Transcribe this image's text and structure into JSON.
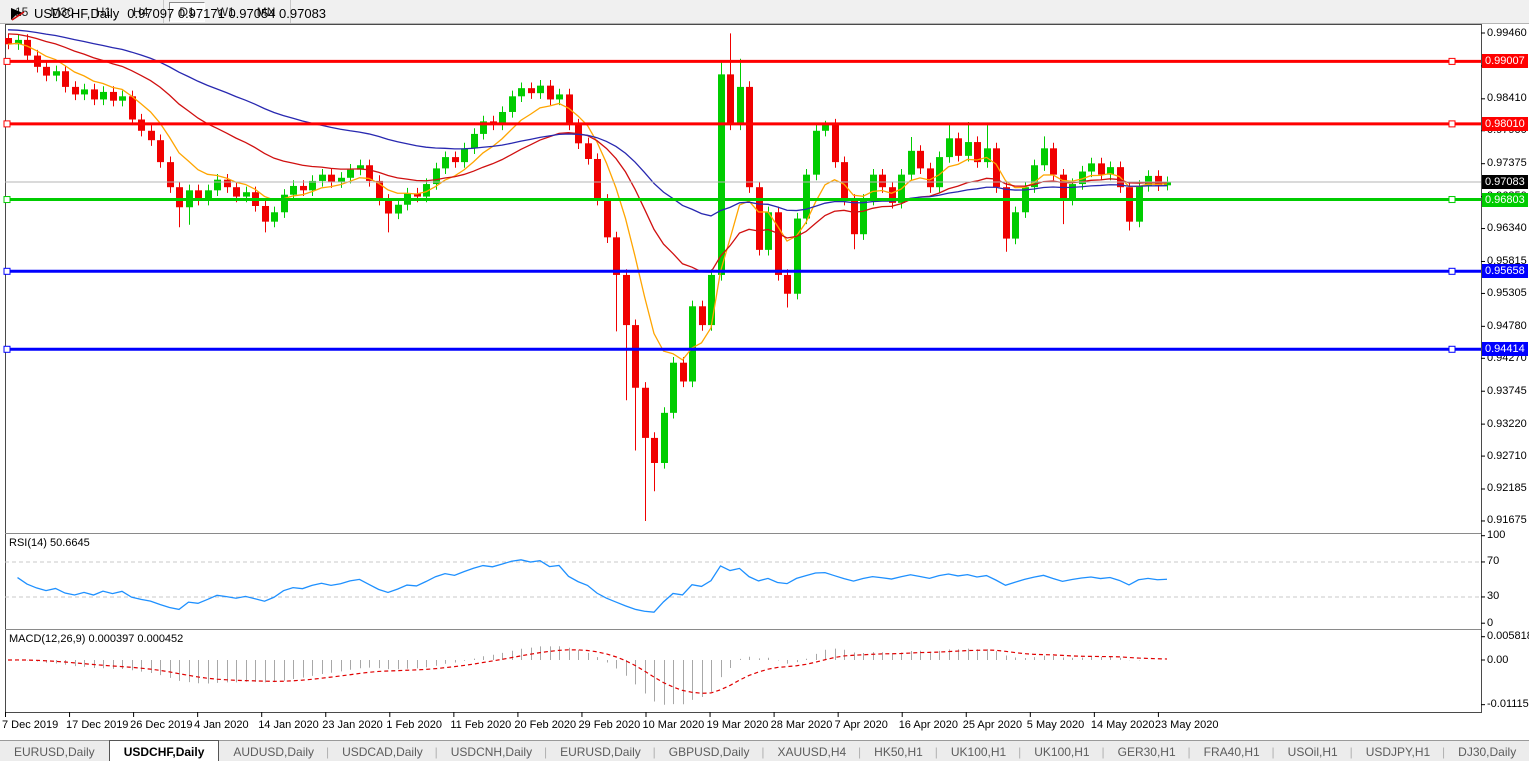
{
  "toolbar": {
    "groups": [
      [
        "15",
        "M30",
        "H1",
        "H4"
      ],
      [
        "D1",
        "W1",
        "MN"
      ]
    ],
    "active": "D1"
  },
  "chart": {
    "symbol": "USDCHF,Daily",
    "ohlc": "0.97097 0.97171 0.97054 0.97083",
    "colors": {
      "bull": "#00CC00",
      "bear": "#F00000",
      "ma_fast": "#FFA500",
      "ma_mid": "#D01010",
      "ma_slow": "#2828B0",
      "rsi": "#1E90FF",
      "macd_bar": "#A8A8A8",
      "macd_signal": "#E00000",
      "price_line": "#B4B4B4",
      "level_dash": "#C8C8C8",
      "current_box": "#000000"
    },
    "axis_ticks": [
      {
        "label": "0.99460",
        "price": 0.9946
      },
      {
        "label": "0.98935",
        "price": 0.98935
      },
      {
        "label": "0.98410",
        "price": 0.9841
      },
      {
        "label": "0.97900",
        "price": 0.979
      },
      {
        "label": "0.97375",
        "price": 0.97375
      },
      {
        "label": "0.96850",
        "price": 0.9685
      },
      {
        "label": "0.96340",
        "price": 0.9634
      },
      {
        "label": "0.95815",
        "price": 0.95815
      },
      {
        "label": "0.95305",
        "price": 0.95305
      },
      {
        "label": "0.94780",
        "price": 0.9478
      },
      {
        "label": "0.94270",
        "price": 0.9427
      },
      {
        "label": "0.93745",
        "price": 0.93745
      },
      {
        "label": "0.93220",
        "price": 0.9322
      },
      {
        "label": "0.92710",
        "price": 0.9271
      },
      {
        "label": "0.92185",
        "price": 0.92185
      },
      {
        "label": "0.91675",
        "price": 0.91675
      }
    ],
    "hlines": [
      {
        "label": "0.99007",
        "price": 0.99007,
        "color": "#FF0000"
      },
      {
        "label": "0.98010",
        "price": 0.9801,
        "color": "#FF0000"
      },
      {
        "label": "0.96803",
        "price": 0.96803,
        "color": "#00CC00"
      },
      {
        "label": "0.95658",
        "price": 0.95658,
        "color": "#0000FF"
      },
      {
        "label": "0.94414",
        "price": 0.94414,
        "color": "#0000FF"
      }
    ],
    "current_price": {
      "label": "0.97083",
      "price": 0.97083
    },
    "bars": [
      [
        0.9938,
        0.9944,
        0.992,
        0.9928
      ],
      [
        0.9928,
        0.9944,
        0.9919,
        0.9935
      ],
      [
        0.9935,
        0.9944,
        0.9901,
        0.991
      ],
      [
        0.991,
        0.9919,
        0.9883,
        0.9892
      ],
      [
        0.9892,
        0.9901,
        0.9869,
        0.9878
      ],
      [
        0.9878,
        0.9894,
        0.9869,
        0.9885
      ],
      [
        0.9885,
        0.9894,
        0.9851,
        0.986
      ],
      [
        0.986,
        0.9869,
        0.9839,
        0.9848
      ],
      [
        0.9848,
        0.9865,
        0.9839,
        0.9856
      ],
      [
        0.9856,
        0.9865,
        0.9831,
        0.984
      ],
      [
        0.984,
        0.9861,
        0.9831,
        0.9852
      ],
      [
        0.9852,
        0.9861,
        0.9829,
        0.9838
      ],
      [
        0.9838,
        0.9854,
        0.9829,
        0.9845
      ],
      [
        0.9845,
        0.9854,
        0.9799,
        0.9808
      ],
      [
        0.9808,
        0.9817,
        0.9781,
        0.979
      ],
      [
        0.979,
        0.9799,
        0.9766,
        0.9775
      ],
      [
        0.9775,
        0.9784,
        0.9731,
        0.974
      ],
      [
        0.974,
        0.9749,
        0.9691,
        0.97
      ],
      [
        0.97,
        0.9709,
        0.9636,
        0.9668
      ],
      [
        0.9668,
        0.9704,
        0.964,
        0.9695
      ],
      [
        0.9695,
        0.9704,
        0.9671,
        0.968
      ],
      [
        0.968,
        0.9704,
        0.9671,
        0.9695
      ],
      [
        0.9695,
        0.9721,
        0.9686,
        0.9712
      ],
      [
        0.9712,
        0.9721,
        0.9691,
        0.97
      ],
      [
        0.97,
        0.9709,
        0.9676,
        0.9685
      ],
      [
        0.9685,
        0.9701,
        0.9676,
        0.9692
      ],
      [
        0.9692,
        0.9701,
        0.9661,
        0.967
      ],
      [
        0.967,
        0.9679,
        0.9628,
        0.9645
      ],
      [
        0.9645,
        0.9669,
        0.9636,
        0.966
      ],
      [
        0.966,
        0.9697,
        0.9651,
        0.9688
      ],
      [
        0.9688,
        0.9711,
        0.9679,
        0.9702
      ],
      [
        0.9702,
        0.9711,
        0.9686,
        0.9695
      ],
      [
        0.9695,
        0.9719,
        0.9686,
        0.971
      ],
      [
        0.971,
        0.9729,
        0.9701,
        0.972
      ],
      [
        0.972,
        0.9729,
        0.9699,
        0.9708
      ],
      [
        0.9708,
        0.9724,
        0.9699,
        0.9715
      ],
      [
        0.9715,
        0.9737,
        0.9706,
        0.9728
      ],
      [
        0.9728,
        0.9744,
        0.9719,
        0.9735
      ],
      [
        0.9735,
        0.9744,
        0.9701,
        0.971
      ],
      [
        0.971,
        0.9719,
        0.9671,
        0.968
      ],
      [
        0.968,
        0.9689,
        0.9628,
        0.9658
      ],
      [
        0.9658,
        0.9681,
        0.9649,
        0.9672
      ],
      [
        0.9672,
        0.9699,
        0.9663,
        0.969
      ],
      [
        0.969,
        0.9699,
        0.9676,
        0.9685
      ],
      [
        0.9685,
        0.9714,
        0.9676,
        0.9705
      ],
      [
        0.9705,
        0.9739,
        0.9696,
        0.973
      ],
      [
        0.973,
        0.9757,
        0.9721,
        0.9748
      ],
      [
        0.9748,
        0.9757,
        0.9731,
        0.974
      ],
      [
        0.974,
        0.9771,
        0.9731,
        0.9762
      ],
      [
        0.9762,
        0.9794,
        0.9753,
        0.9785
      ],
      [
        0.9785,
        0.9814,
        0.9776,
        0.9805
      ],
      [
        0.9805,
        0.9814,
        0.9791,
        0.98
      ],
      [
        0.98,
        0.9829,
        0.9791,
        0.982
      ],
      [
        0.982,
        0.9854,
        0.9811,
        0.9845
      ],
      [
        0.9845,
        0.9867,
        0.9836,
        0.9858
      ],
      [
        0.9858,
        0.9867,
        0.9841,
        0.985
      ],
      [
        0.985,
        0.9871,
        0.9841,
        0.9862
      ],
      [
        0.9862,
        0.9871,
        0.9831,
        0.984
      ],
      [
        0.984,
        0.9857,
        0.9831,
        0.9848
      ],
      [
        0.9848,
        0.9857,
        0.9791,
        0.98
      ],
      [
        0.98,
        0.9809,
        0.9761,
        0.977
      ],
      [
        0.977,
        0.9779,
        0.9736,
        0.9745
      ],
      [
        0.9745,
        0.9754,
        0.9671,
        0.968
      ],
      [
        0.968,
        0.9689,
        0.9611,
        0.962
      ],
      [
        0.962,
        0.9629,
        0.947,
        0.956
      ],
      [
        0.956,
        0.9569,
        0.936,
        0.948
      ],
      [
        0.948,
        0.9489,
        0.928,
        0.938
      ],
      [
        0.938,
        0.9389,
        0.91675,
        0.93
      ],
      [
        0.93,
        0.9309,
        0.9215,
        0.926
      ],
      [
        0.926,
        0.9349,
        0.9251,
        0.934
      ],
      [
        0.934,
        0.9429,
        0.9331,
        0.942
      ],
      [
        0.942,
        0.9429,
        0.9381,
        0.939
      ],
      [
        0.939,
        0.9519,
        0.9381,
        0.951
      ],
      [
        0.951,
        0.9519,
        0.9471,
        0.948
      ],
      [
        0.948,
        0.9569,
        0.9471,
        0.956
      ],
      [
        0.956,
        0.99,
        0.9551,
        0.988
      ],
      [
        0.988,
        0.99455,
        0.9791,
        0.98
      ],
      [
        0.98,
        0.9905,
        0.9791,
        0.986
      ],
      [
        0.986,
        0.9869,
        0.9691,
        0.97
      ],
      [
        0.97,
        0.9709,
        0.9591,
        0.96
      ],
      [
        0.96,
        0.9669,
        0.9591,
        0.966
      ],
      [
        0.966,
        0.9669,
        0.9551,
        0.956
      ],
      [
        0.956,
        0.9569,
        0.9508,
        0.953
      ],
      [
        0.953,
        0.9659,
        0.9521,
        0.965
      ],
      [
        0.965,
        0.9729,
        0.9641,
        0.972
      ],
      [
        0.972,
        0.9803,
        0.9711,
        0.979
      ],
      [
        0.979,
        0.9806,
        0.9781,
        0.98
      ],
      [
        0.98,
        0.9809,
        0.9731,
        0.974
      ],
      [
        0.974,
        0.9749,
        0.9671,
        0.968
      ],
      [
        0.968,
        0.9689,
        0.9601,
        0.9625
      ],
      [
        0.9625,
        0.9689,
        0.9616,
        0.968
      ],
      [
        0.968,
        0.9729,
        0.9671,
        0.972
      ],
      [
        0.972,
        0.9729,
        0.9691,
        0.97
      ],
      [
        0.97,
        0.9709,
        0.9666,
        0.9675
      ],
      [
        0.9675,
        0.9729,
        0.9666,
        0.972
      ],
      [
        0.972,
        0.978,
        0.9711,
        0.9758
      ],
      [
        0.9758,
        0.9767,
        0.9721,
        0.973
      ],
      [
        0.973,
        0.9739,
        0.9691,
        0.97
      ],
      [
        0.97,
        0.9757,
        0.9691,
        0.9748
      ],
      [
        0.9748,
        0.98,
        0.9739,
        0.9778
      ],
      [
        0.9778,
        0.9787,
        0.9741,
        0.975
      ],
      [
        0.975,
        0.9804,
        0.9741,
        0.9772
      ],
      [
        0.9772,
        0.9781,
        0.9731,
        0.974
      ],
      [
        0.974,
        0.9799,
        0.9731,
        0.9762
      ],
      [
        0.9762,
        0.9771,
        0.9691,
        0.97
      ],
      [
        0.97,
        0.9709,
        0.9597,
        0.9618
      ],
      [
        0.9618,
        0.9669,
        0.9609,
        0.966
      ],
      [
        0.966,
        0.9709,
        0.9651,
        0.97
      ],
      [
        0.97,
        0.9744,
        0.9691,
        0.9735
      ],
      [
        0.9735,
        0.9781,
        0.9726,
        0.9762
      ],
      [
        0.9762,
        0.9771,
        0.9711,
        0.972
      ],
      [
        0.972,
        0.9729,
        0.9641,
        0.968
      ],
      [
        0.968,
        0.9714,
        0.9671,
        0.9705
      ],
      [
        0.9705,
        0.9734,
        0.9696,
        0.9725
      ],
      [
        0.9725,
        0.9747,
        0.9716,
        0.9738
      ],
      [
        0.9738,
        0.9747,
        0.9711,
        0.972
      ],
      [
        0.972,
        0.9741,
        0.9711,
        0.9732
      ],
      [
        0.9732,
        0.9741,
        0.9691,
        0.97
      ],
      [
        0.97,
        0.9709,
        0.9631,
        0.9645
      ],
      [
        0.9645,
        0.9711,
        0.9636,
        0.9702
      ],
      [
        0.9702,
        0.9727,
        0.9693,
        0.9718
      ],
      [
        0.9718,
        0.9727,
        0.9694,
        0.9703
      ],
      [
        0.9703,
        0.9717,
        0.9695,
        0.97083
      ]
    ]
  },
  "rsi": {
    "label": "RSI(14) 50.6645",
    "period": 14,
    "levels": [
      {
        "label": "100",
        "value": 100
      },
      {
        "label": "70",
        "value": 70
      },
      {
        "label": "30",
        "value": 30
      },
      {
        "label": "0",
        "value": 0
      }
    ],
    "dashed_levels": [
      70,
      30
    ]
  },
  "macd": {
    "label": "MACD(12,26,9) 0.000397 0.000452",
    "fast": 12,
    "slow": 26,
    "signal": 9,
    "axis": [
      {
        "label": "0.005818",
        "value": 0.005818
      },
      {
        "label": "0.00",
        "value": 0
      },
      {
        "label": "-0.011151",
        "value": -0.011151
      }
    ]
  },
  "dates": [
    "7 Dec 2019",
    "17 Dec 2019",
    "26 Dec 2019",
    "4 Jan 2020",
    "14 Jan 2020",
    "23 Jan 2020",
    "1 Feb 2020",
    "11 Feb 2020",
    "20 Feb 2020",
    "29 Feb 2020",
    "10 Mar 2020",
    "19 Mar 2020",
    "28 Mar 2020",
    "7 Apr 2020",
    "16 Apr 2020",
    "25 Apr 2020",
    "5 May 2020",
    "14 May 2020",
    "23 May 2020"
  ],
  "tabs": {
    "items": [
      "EURUSD,Daily",
      "USDCHF,Daily",
      "AUDUSD,Daily",
      "USDCAD,Daily",
      "USDCNH,Daily",
      "EURUSD,Daily",
      "GBPUSD,Daily",
      "XAUUSD,H4",
      "HK50,H1",
      "UK100,H1",
      "UK100,H1",
      "GER30,H1",
      "FRA40,H1",
      "USOil,H1",
      "USDJPY,H1",
      "DJ30,Daily"
    ],
    "active_index": 1,
    "scroll_left": "◄",
    "scroll_right": "►"
  }
}
